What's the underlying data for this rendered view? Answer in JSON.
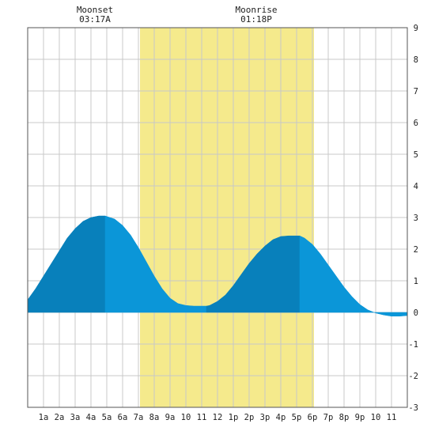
{
  "chart_data": {
    "type": "area",
    "title": "",
    "xlabel": "",
    "ylabel": "",
    "ylim": [
      -3,
      9
    ],
    "xlim_hours": [
      0,
      24
    ],
    "yticks": [
      -3,
      -2,
      -1,
      0,
      1,
      2,
      3,
      4,
      5,
      6,
      7,
      8,
      9
    ],
    "x_tick_labels": [
      "1a",
      "2a",
      "3a",
      "4a",
      "5a",
      "6a",
      "7a",
      "8a",
      "9a",
      "10",
      "11",
      "12",
      "1p",
      "2p",
      "3p",
      "4p",
      "5p",
      "6p",
      "7p",
      "8p",
      "9p",
      "10",
      "11"
    ],
    "grid": true,
    "moonrise": {
      "label": "Moonrise",
      "time": "01:18P"
    },
    "moonset": {
      "label": "Moonset",
      "time": "03:17A"
    },
    "daylight_hours": [
      7.1,
      18.1
    ],
    "tide_extrema": [
      {
        "hour": 0.0,
        "height": 0.4
      },
      {
        "hour": 4.9,
        "height": 3.05
      },
      {
        "hour": 11.3,
        "height": 0.2
      },
      {
        "hour": 17.2,
        "height": 2.42
      },
      {
        "hour": 24.0,
        "height": -0.1
      }
    ],
    "tide_series": {
      "x_hours": [
        0.0,
        0.5,
        1.0,
        1.5,
        2.0,
        2.5,
        3.0,
        3.5,
        4.0,
        4.5,
        4.9,
        5.5,
        6.0,
        6.5,
        7.0,
        7.5,
        8.0,
        8.5,
        9.0,
        9.5,
        10.0,
        10.5,
        11.0,
        11.3,
        11.5,
        12.0,
        12.5,
        13.0,
        13.5,
        14.0,
        14.5,
        15.0,
        15.5,
        16.0,
        16.5,
        17.0,
        17.2,
        17.5,
        18.0,
        18.5,
        19.0,
        19.5,
        20.0,
        20.5,
        21.0,
        21.5,
        22.0,
        22.5,
        23.0,
        23.5,
        24.0
      ],
      "y_heights": [
        0.4,
        0.75,
        1.15,
        1.55,
        1.95,
        2.35,
        2.65,
        2.88,
        3.0,
        3.05,
        3.05,
        2.95,
        2.75,
        2.45,
        2.05,
        1.6,
        1.15,
        0.75,
        0.45,
        0.28,
        0.22,
        0.2,
        0.2,
        0.2,
        0.22,
        0.35,
        0.55,
        0.85,
        1.2,
        1.55,
        1.85,
        2.1,
        2.3,
        2.4,
        2.42,
        2.42,
        2.42,
        2.35,
        2.15,
        1.85,
        1.5,
        1.15,
        0.8,
        0.5,
        0.25,
        0.08,
        -0.02,
        -0.08,
        -0.12,
        -0.12,
        -0.1
      ]
    },
    "colors": {
      "daylight": "#f5ea8c",
      "tide_light": "#0b96d8",
      "tide_dark": "#0880bb",
      "grid": "#c8c8c8",
      "frame": "#555555"
    }
  }
}
